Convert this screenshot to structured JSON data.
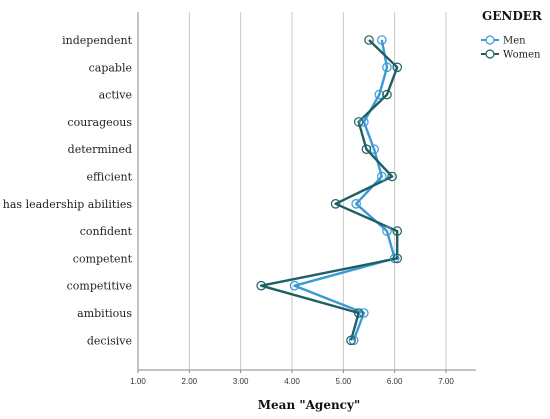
{
  "chart_data": {
    "type": "line",
    "orientation": "horizontal",
    "xlabel": "Mean \"Agency\"",
    "xlim": [
      1,
      7.6
    ],
    "xticks": [
      1,
      2,
      3,
      4,
      5,
      6,
      7
    ],
    "xtick_labels": [
      "1.00",
      "2.00",
      "3.00",
      "4.00",
      "5.00",
      "6.00",
      "7.00"
    ],
    "grid": "vertical",
    "categories": [
      "independent",
      "capable",
      "active",
      "courageous",
      "determined",
      "efficient",
      "has leadership abilities",
      "confident",
      "competent",
      "competitive",
      "ambitious",
      "decisive"
    ],
    "legend": {
      "title": "GENDER",
      "position": "top-right"
    },
    "series": [
      {
        "name": "Men",
        "color": "#3a9ad6",
        "values": [
          5.75,
          5.85,
          5.7,
          5.4,
          5.6,
          5.75,
          5.25,
          5.85,
          6.0,
          4.05,
          5.4,
          5.2
        ]
      },
      {
        "name": "Women",
        "color": "#1f5f63",
        "values": [
          5.5,
          6.05,
          5.85,
          5.3,
          5.45,
          5.95,
          4.85,
          6.05,
          6.05,
          3.4,
          5.3,
          5.15
        ]
      }
    ]
  }
}
